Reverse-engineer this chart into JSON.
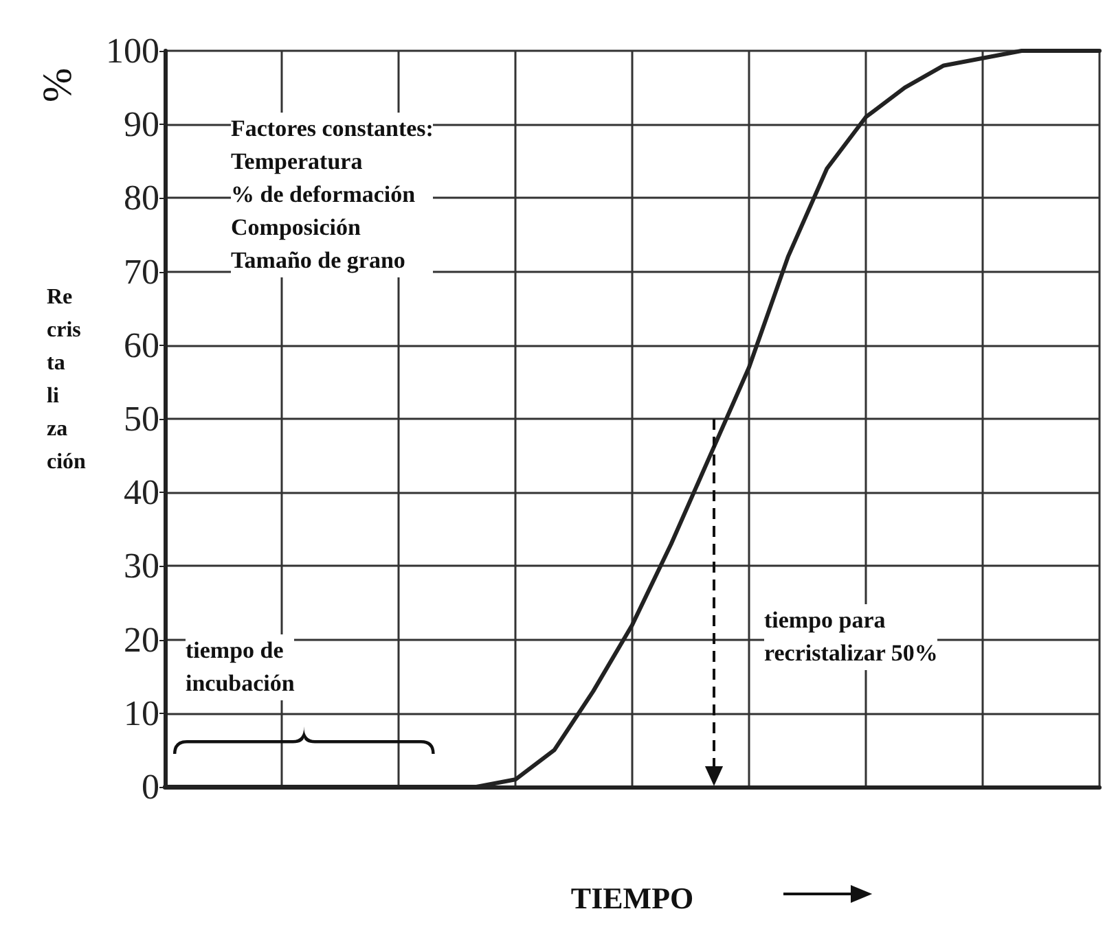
{
  "chart_data": {
    "type": "line",
    "xlabel": "TIEMPO",
    "ylabel": "Re cris ta li za ción",
    "categories": [
      null,
      null,
      null,
      null,
      null,
      null,
      null,
      null,
      null,
      null,
      null,
      null,
      null,
      null,
      null,
      null,
      null,
      null,
      null,
      null,
      null,
      null,
      null,
      null,
      null
    ],
    "series": [
      {
        "color": "#222222",
        "values": [
          0,
          0,
          0,
          0,
          0,
          0,
          0,
          0,
          0,
          1,
          5,
          13,
          22,
          33,
          45,
          57,
          72,
          84,
          91,
          95,
          98,
          99,
          100,
          100,
          100
        ]
      }
    ],
    "ylim": [
      0,
      100
    ],
    "yticks": [
      0,
      10,
      20,
      30,
      40,
      50,
      60,
      70,
      80,
      90,
      100
    ],
    "grid": true,
    "marker": "none",
    "line_style": "solid",
    "annotations": [
      "%",
      "Factores constantes:\nTemperatura\n% de deformación\nComposición\nTamaño de grano",
      "tiempo de\nincubación",
      "tiempo para\nrecristalizar 50%"
    ]
  }
}
